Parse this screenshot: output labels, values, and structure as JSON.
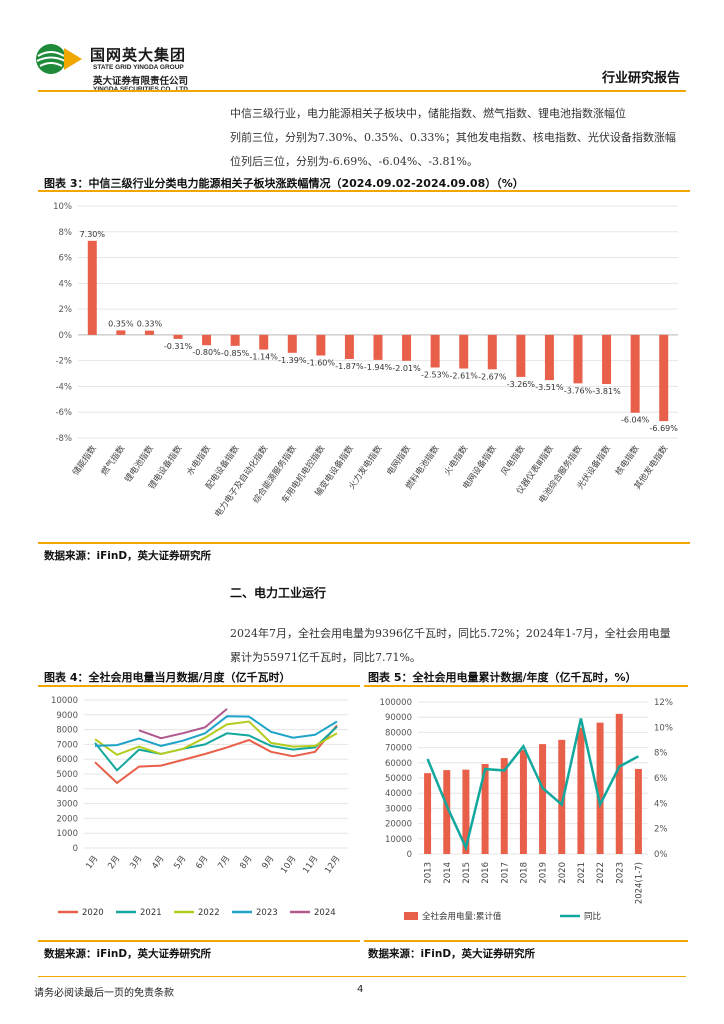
{
  "header": {
    "logo_cn": "国网英大集团",
    "logo_en": "STATE GRID YINGDA GROUP",
    "company_cn": "英大证券有限责任公司",
    "company_en": "YINGDA SECURITIES CO., LTD.",
    "report_type": "行业研究报告"
  },
  "intro_paragraph": {
    "line1": "中信三级行业，电力能源相关子板块中，储能指数、燃气指数、锂电池指数涨幅位",
    "line2": "列前三位，分别为7.30%、0.35%、0.33%；其他发电指数、核电指数、光伏设备指数涨幅",
    "line3": "位列后三位，分别为-6.69%、-6.04%、-3.81%。"
  },
  "figure3": {
    "title": "图表 3：中信三级行业分类电力能源相关子板块涨跌幅情况（2024.09.02-2024.09.08）（%）",
    "source": "数据来源：iFinD，英大证券研究所"
  },
  "section2": {
    "title": "二、电力工业运行",
    "line1": "2024年7月，全社会用电量为9396亿千瓦时，同比5.72%；2024年1-7月，全社会用电量",
    "line2": "累计为55971亿千瓦时，同比7.71%。"
  },
  "figure4": {
    "title": "图表 4：全社会用电量当月数据/月度（亿千瓦时）",
    "source": "数据来源：iFinD，英大证券研究所"
  },
  "figure5": {
    "title": "图表 5：全社会用电量累计数据/年度（亿千瓦时，%）",
    "source": "数据来源：iFinD，英大证券研究所"
  },
  "footer": {
    "disclaimer": "请务必阅读最后一页的免责条款",
    "page": "4"
  },
  "colors": {
    "gold": "#f0a800",
    "bar": "#e8604a",
    "teal": "#13a89e",
    "s2020": "#e8604a",
    "s2021": "#13a89e",
    "s2022": "#b5cc1e",
    "s2023": "#1ea3c9",
    "s2024": "#b0588e"
  },
  "chart_data": [
    {
      "type": "bar",
      "title": "中信三级行业分类电力能源相关子板块涨跌幅情况（2024.09.02-2024.09.08）（%）",
      "categories": [
        "储能指数",
        "燃气指数",
        "锂电池指数",
        "锂电设备指数",
        "水电指数",
        "配电设备指数",
        "电力电子及自动化指数",
        "综合能源服务指数",
        "车用电机电控指数",
        "输变电设备指数",
        "火力发电指数",
        "电网指数",
        "燃料电池指数",
        "火电指数",
        "电网设备指数",
        "风电指数",
        "仪器仪表Ⅲ指数",
        "电池综合服务指数",
        "光伏设备指数",
        "核电指数",
        "其他发电指数"
      ],
      "values": [
        7.3,
        0.35,
        0.33,
        -0.31,
        -0.8,
        -0.85,
        -1.14,
        -1.39,
        -1.6,
        -1.87,
        -1.94,
        -2.01,
        -2.53,
        -2.61,
        -2.67,
        -3.26,
        -3.51,
        -3.76,
        -3.81,
        -6.04,
        -6.69
      ],
      "labels": [
        "7.30%",
        "0.35%",
        "0.33%",
        "-0.31%",
        "-0.80%",
        "-0.85%",
        "-1.14%",
        "-1.39%",
        "-1.60%",
        "-1.87%",
        "-1.94%",
        "-2.01%",
        "-2.53%",
        "-2.61%",
        "-2.67%",
        "-3.26%",
        "-3.51%",
        "-3.76%",
        "-3.81%",
        "-6.04%",
        "-6.69%"
      ],
      "ylim": [
        -8,
        10
      ],
      "yticks": [
        "10%",
        "8%",
        "6%",
        "4%",
        "2%",
        "0%",
        "-2%",
        "-4%",
        "-6%",
        "-8%"
      ]
    },
    {
      "type": "line",
      "title": "全社会用电量当月数据/月度（亿千瓦时）",
      "categories": [
        "1月",
        "2月",
        "3月",
        "4月",
        "5月",
        "6月",
        "7月",
        "8月",
        "9月",
        "10月",
        "11月",
        "12月"
      ],
      "ylim": [
        0,
        10000
      ],
      "yticks": [
        "10000",
        "9000",
        "8000",
        "7000",
        "6000",
        "5000",
        "4000",
        "3000",
        "2000",
        "1000",
        "0"
      ],
      "series": [
        {
          "name": "2020",
          "values": [
            5800,
            4400,
            5500,
            5570,
            5950,
            6350,
            6800,
            7300,
            6500,
            6200,
            6500,
            8300
          ]
        },
        {
          "name": "2021",
          "values": [
            7100,
            5250,
            6650,
            6350,
            6700,
            7000,
            7750,
            7600,
            6900,
            6650,
            6800,
            8200
          ]
        },
        {
          "name": "2022",
          "values": [
            7350,
            6300,
            6850,
            6350,
            6700,
            7450,
            8350,
            8550,
            7100,
            6850,
            6900,
            7750
          ]
        },
        {
          "name": "2023",
          "values": [
            6900,
            6950,
            7400,
            6900,
            7250,
            7750,
            8900,
            8880,
            7850,
            7450,
            7650,
            8550
          ]
        },
        {
          "name": "2024",
          "values": [
            null,
            null,
            7950,
            7420,
            7760,
            8150,
            9396,
            null,
            null,
            null,
            null,
            null
          ]
        }
      ]
    },
    {
      "type": "bar+line",
      "title": "全社会用电量累计数据/年度（亿千瓦时，%）",
      "categories": [
        "2013",
        "2014",
        "2015",
        "2016",
        "2017",
        "2018",
        "2019",
        "2020",
        "2021",
        "2022",
        "2023",
        "2024(1-7)"
      ],
      "series": [
        {
          "name": "全社会用电量:累计值",
          "kind": "bar",
          "axis": "left",
          "values": [
            53200,
            55200,
            55500,
            59200,
            63100,
            68400,
            72300,
            75100,
            83100,
            86400,
            92200,
            55971
          ]
        },
        {
          "name": "同比",
          "kind": "line",
          "axis": "right",
          "values": [
            7.5,
            3.8,
            0.5,
            6.7,
            6.6,
            8.5,
            5.2,
            3.9,
            10.7,
            3.9,
            6.9,
            7.71
          ]
        }
      ],
      "ylim_left": [
        0,
        100000
      ],
      "yticks_left": [
        "100000",
        "90000",
        "80000",
        "70000",
        "60000",
        "50000",
        "40000",
        "30000",
        "20000",
        "10000",
        "0"
      ],
      "ylim_right": [
        0,
        12
      ],
      "yticks_right": [
        "12%",
        "10%",
        "8%",
        "6%",
        "4%",
        "2%",
        "0%"
      ]
    }
  ]
}
